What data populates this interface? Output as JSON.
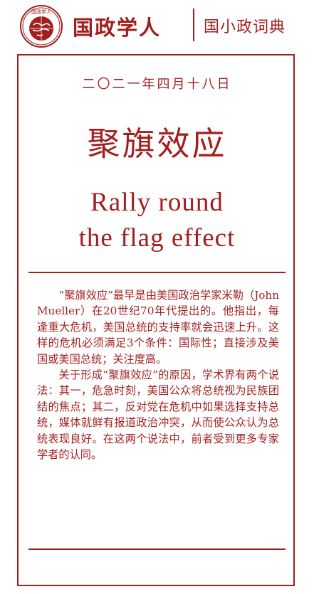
{
  "header": {
    "brand": "国政学人",
    "section": "国小政词典",
    "logo_text": "国政学人"
  },
  "article": {
    "date": "二〇二一年四月十八日",
    "title_zh": "聚旗效应",
    "title_en_line1": "Rally round",
    "title_en_line2": "the flag effect",
    "paragraphs": [
      "“聚旗效应”最早是由美国政治学家米勒（John Mueller）在20世纪70年代提出的。他指出，每逢重大危机，美国总统的支持率就会迅速上升。这样的危机必须满足3个条件：国际性；直接涉及美国或美国总统；关注度高。",
      "关于形成“聚旗效应”的原因，学术界有两个说法：其一，危急时刻，美国公众将总统视为民族团结的焦点；其二，反对党在危机中如果选择支持总统，媒体就鲜有报道政治冲突，从而使公众认为总统表现良好。在这两个说法中，前者受到更多专家学者的认同。"
    ]
  },
  "colors": {
    "accent": "#a31f1f",
    "background": "#ffffff"
  },
  "icons": {
    "logo": "globe-seal-icon"
  }
}
